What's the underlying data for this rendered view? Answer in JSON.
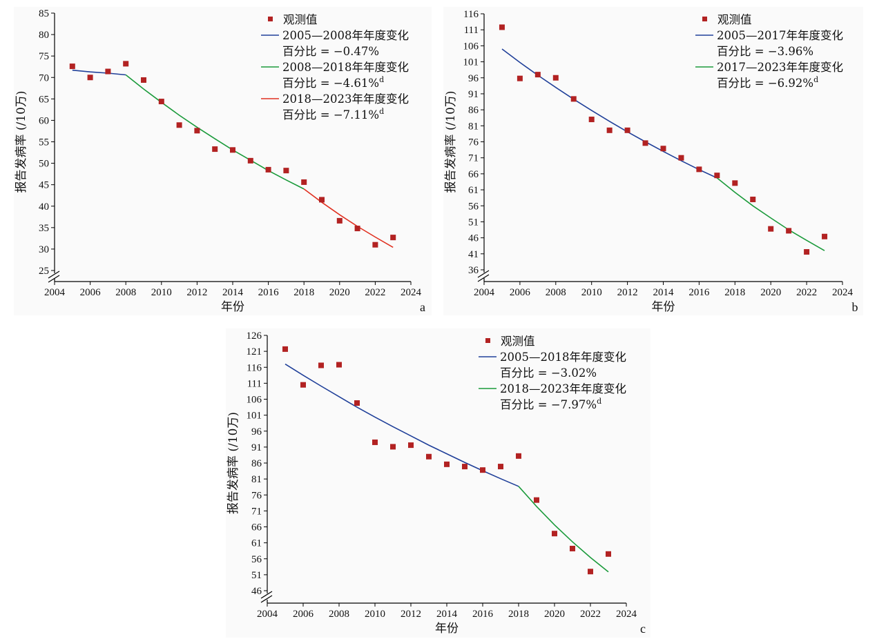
{
  "chart_data": [
    {
      "id": "a",
      "type": "scatter",
      "panel_label": "a",
      "xlabel": "年份",
      "ylabel": "报告发病率 (/10万)",
      "xlim": [
        2004,
        2024
      ],
      "xticks": [
        2004,
        2006,
        2008,
        2010,
        2012,
        2014,
        2016,
        2018,
        2020,
        2022,
        2024
      ],
      "ylim": [
        25,
        85
      ],
      "yticks": [
        25,
        30,
        35,
        40,
        45,
        50,
        55,
        60,
        65,
        70,
        75,
        80,
        85
      ],
      "axis_break": true,
      "legend_position": "top-right",
      "observed": {
        "name": "观测值",
        "color": "#b22222",
        "x": [
          2005,
          2006,
          2007,
          2008,
          2009,
          2010,
          2011,
          2012,
          2013,
          2014,
          2015,
          2016,
          2017,
          2018,
          2019,
          2020,
          2021,
          2022,
          2023
        ],
        "y": [
          72.6,
          70.0,
          71.4,
          73.2,
          69.4,
          64.4,
          58.9,
          57.6,
          53.3,
          53.1,
          50.6,
          48.5,
          48.3,
          45.6,
          41.5,
          36.6,
          34.8,
          31.0,
          32.7
        ]
      },
      "segments": [
        {
          "line1": "2005—2008年年度变化",
          "line2": "百分比 = −0.47%",
          "sup": "",
          "color": "#1f3f99",
          "x": [
            2005,
            2006,
            2007,
            2008
          ],
          "y": [
            71.7,
            71.3,
            71.0,
            70.6
          ]
        },
        {
          "line1": "2008—2018年年度变化",
          "line2": "百分比 = −4.61%",
          "sup": "d",
          "color": "#1a9a3a",
          "x": [
            2008,
            2009,
            2010,
            2011,
            2012,
            2013,
            2014,
            2015,
            2016,
            2017,
            2018
          ],
          "y": [
            70.6,
            67.3,
            64.2,
            61.2,
            58.4,
            55.7,
            53.1,
            50.7,
            48.3,
            46.1,
            44.0
          ]
        },
        {
          "line1": "2018—2023年年度变化",
          "line2": "百分比 = −7.11%",
          "sup": "d",
          "color": "#e03020",
          "x": [
            2018,
            2019,
            2020,
            2021,
            2022,
            2023
          ],
          "y": [
            44.0,
            40.9,
            38.0,
            35.3,
            32.8,
            30.4
          ]
        }
      ]
    },
    {
      "id": "b",
      "type": "scatter",
      "panel_label": "b",
      "xlabel": "年份",
      "ylabel": "报告发病率 (/10万)",
      "xlim": [
        2004,
        2024
      ],
      "xticks": [
        2004,
        2006,
        2008,
        2010,
        2012,
        2014,
        2016,
        2018,
        2020,
        2022,
        2024
      ],
      "ylim": [
        36,
        116
      ],
      "yticks": [
        36,
        41,
        46,
        51,
        56,
        61,
        66,
        71,
        76,
        81,
        86,
        91,
        96,
        101,
        106,
        111,
        116
      ],
      "axis_break": true,
      "legend_position": "top-right",
      "observed": {
        "name": "观测值",
        "color": "#b22222",
        "x": [
          2005,
          2006,
          2007,
          2008,
          2009,
          2010,
          2011,
          2012,
          2013,
          2014,
          2015,
          2016,
          2017,
          2018,
          2019,
          2020,
          2021,
          2022,
          2023
        ],
        "y": [
          111.8,
          95.8,
          97.0,
          96.0,
          89.4,
          83.0,
          79.6,
          79.6,
          75.6,
          73.9,
          71.0,
          67.4,
          65.5,
          63.1,
          58.0,
          48.8,
          48.2,
          41.6,
          46.4
        ]
      },
      "segments": [
        {
          "line1": "2005—2017年年度变化",
          "line2": "百分比 = −3.96%",
          "sup": "",
          "color": "#1f3f99",
          "x": [
            2005,
            2006,
            2007,
            2008,
            2009,
            2010,
            2011,
            2012,
            2013,
            2014,
            2015,
            2016,
            2017
          ],
          "y": [
            105.0,
            100.8,
            96.8,
            93.0,
            89.3,
            85.8,
            82.4,
            79.1,
            76.0,
            73.0,
            70.1,
            67.3,
            64.7
          ]
        },
        {
          "line1": "2017—2023年年度变化",
          "line2": "百分比 = −6.92%",
          "sup": "d",
          "color": "#1a9a3a",
          "x": [
            2017,
            2018,
            2019,
            2020,
            2021,
            2022,
            2023
          ],
          "y": [
            64.7,
            60.2,
            56.0,
            52.2,
            48.5,
            45.2,
            42.0
          ]
        }
      ]
    },
    {
      "id": "c",
      "type": "scatter",
      "panel_label": "c",
      "xlabel": "年份",
      "ylabel": "报告发病率 (/10万)",
      "xlim": [
        2004,
        2024
      ],
      "xticks": [
        2004,
        2006,
        2008,
        2010,
        2012,
        2014,
        2016,
        2018,
        2020,
        2022,
        2024
      ],
      "ylim": [
        46,
        126
      ],
      "yticks": [
        46,
        51,
        56,
        61,
        66,
        71,
        76,
        81,
        86,
        91,
        96,
        101,
        106,
        111,
        116,
        121,
        126
      ],
      "axis_break": true,
      "legend_position": "top-right",
      "observed": {
        "name": "观测值",
        "color": "#b22222",
        "x": [
          2005,
          2006,
          2007,
          2008,
          2009,
          2010,
          2011,
          2012,
          2013,
          2014,
          2015,
          2016,
          2017,
          2018,
          2019,
          2020,
          2021,
          2022,
          2023
        ],
        "y": [
          121.7,
          110.5,
          116.6,
          116.8,
          104.8,
          92.5,
          91.1,
          91.6,
          88.0,
          85.6,
          84.9,
          83.8,
          84.9,
          88.2,
          74.4,
          63.9,
          59.2,
          52.0,
          57.5
        ]
      },
      "segments": [
        {
          "line1": "2005—2018年年度变化",
          "line2": "百分比 = −3.02%",
          "sup": "",
          "color": "#1f3f99",
          "x": [
            2005,
            2006,
            2007,
            2008,
            2009,
            2010,
            2011,
            2012,
            2013,
            2014,
            2015,
            2016,
            2017,
            2018
          ],
          "y": [
            117.0,
            113.5,
            110.1,
            106.8,
            103.5,
            100.4,
            97.4,
            94.5,
            91.6,
            88.9,
            86.2,
            83.6,
            81.1,
            78.7
          ]
        },
        {
          "line1": "2018—2023年年度变化",
          "line2": "百分比 = −7.97%",
          "sup": "d",
          "color": "#1a9a3a",
          "x": [
            2018,
            2019,
            2020,
            2021,
            2022,
            2023
          ],
          "y": [
            78.7,
            72.4,
            66.6,
            61.3,
            56.4,
            51.9
          ]
        }
      ]
    }
  ]
}
